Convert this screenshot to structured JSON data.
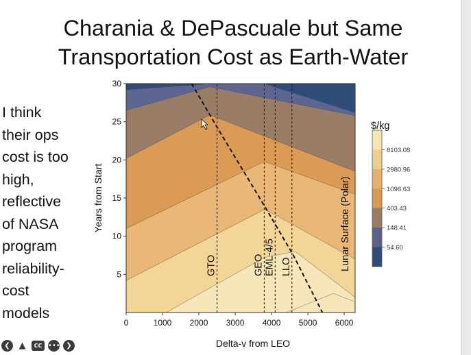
{
  "slide": {
    "title_line1": "Charania & DePascuale but Same",
    "title_line2": "Transportation Cost as Earth-Water",
    "side_note": "I think\ntheir ops\ncost is too\nhigh,\nreflective\nof NASA\nprogram\nreliability-\ncost\nmodels"
  },
  "toolbar": {
    "icons": [
      "back-icon",
      "pointer-icon",
      "closed-captions-icon",
      "more-icon",
      "forward-icon"
    ],
    "cc_label": "CC"
  },
  "chart_data": {
    "type": "contour",
    "xlabel": "Delta-v from LEO",
    "ylabel": "Years from Start",
    "xlim": [
      0,
      6300
    ],
    "ylim": [
      0,
      30
    ],
    "x_ticks": [
      "0",
      "1000",
      "2000",
      "3000",
      "4000",
      "5000",
      "6000"
    ],
    "y_ticks": [
      "5",
      "10",
      "15",
      "20",
      "25",
      "30"
    ],
    "legend_title": "$/kg",
    "legend_values": [
      "8103.08",
      "2980.96",
      "1096.63",
      "403.43",
      "148.41",
      "54.60"
    ],
    "legend_colors": [
      "#f6e6b3",
      "#efcf8e",
      "#e5b06c",
      "#d99a53",
      "#9a7b65",
      "#5b6288",
      "#2f4b78"
    ],
    "band_colors": [
      "#2f4b78",
      "#5c6690",
      "#9a7d66",
      "#dc9b55",
      "#e9b876",
      "#f2d597",
      "#f7e6b9"
    ],
    "destinations": [
      {
        "label": "GTO",
        "delta_v": 2500
      },
      {
        "label": "GEO",
        "delta_v": 3800
      },
      {
        "label": "EML-4/5",
        "delta_v": 4100
      },
      {
        "label": "LLO",
        "delta_v": 4560
      },
      {
        "label": "Lunar Surface (Polar)",
        "delta_v": 6200
      }
    ],
    "boundary_line": {
      "style": "dashed",
      "points": [
        [
          1800,
          30
        ],
        [
          2600,
          23.5
        ],
        [
          3800,
          14
        ],
        [
          4600,
          7.5
        ],
        [
          5400,
          0
        ]
      ]
    },
    "contour_levels": [
      {
        "value": 54.6,
        "points": [
          [
            0,
            29.2
          ],
          [
            2400,
            30
          ],
          [
            3800,
            30
          ],
          [
            6300,
            26.2
          ]
        ]
      },
      {
        "value": 148.41,
        "points": [
          [
            0,
            26.5
          ],
          [
            2300,
            29.6
          ],
          [
            6300,
            25.8
          ]
        ]
      },
      {
        "value": 403.43,
        "points": [
          [
            0,
            20.2
          ],
          [
            2300,
            25.9
          ],
          [
            6300,
            18.5
          ]
        ]
      },
      {
        "value": 1096.63,
        "points": [
          [
            0,
            11.0
          ],
          [
            3800,
            19.8
          ],
          [
            6300,
            15.5
          ]
        ]
      },
      {
        "value": 2980.96,
        "points": [
          [
            0,
            4.2
          ],
          [
            3800,
            13.5
          ],
          [
            4100,
            12.8
          ],
          [
            6300,
            7.0
          ]
        ]
      },
      {
        "value": 8103.08,
        "points": [
          [
            1100,
            0
          ],
          [
            3800,
            7.2
          ],
          [
            4650,
            8.0
          ],
          [
            6300,
            2.0
          ]
        ]
      },
      {
        "value": 22026,
        "points": [
          [
            4400,
            0
          ],
          [
            5700,
            2.5
          ],
          [
            6300,
            1.4
          ]
        ]
      }
    ]
  }
}
